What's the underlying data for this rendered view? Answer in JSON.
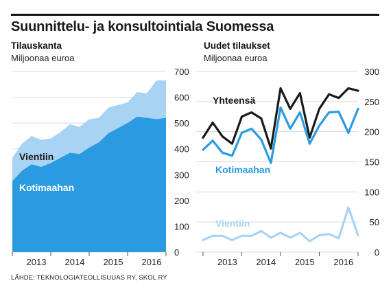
{
  "title": "Suunnittelu- ja konsultointiala Suomessa",
  "source": "LÄHDE: TEKNOLOGIATEOLLISUUAS RY, SKOL RY",
  "colors": {
    "dark_blue": "#2a9be0",
    "light_blue": "#a9d3f3",
    "total_line": "#1a1a1a",
    "grid": "#d9d9d9"
  },
  "chart_data": [
    {
      "type": "area",
      "stacked": true,
      "title": "Tilauskanta",
      "ylabel": "Miljoonaa euroa",
      "ylim": [
        0,
        700
      ],
      "yticks": [
        "0",
        "100",
        "200",
        "300",
        "400",
        "500",
        "600",
        "700"
      ],
      "x_labels": [
        "2013",
        "2014",
        "2015",
        "2016"
      ],
      "x": [
        "2012Q4",
        "2013Q1",
        "2013Q2",
        "2013Q3",
        "2013Q4",
        "2014Q1",
        "2014Q2",
        "2014Q3",
        "2014Q4",
        "2015Q1",
        "2015Q2",
        "2015Q3",
        "2015Q4",
        "2016Q1",
        "2016Q2",
        "2016Q3",
        "2016Q4"
      ],
      "series": [
        {
          "name": "Kotimaahan",
          "values": [
            275,
            315,
            340,
            330,
            345,
            365,
            385,
            380,
            405,
            425,
            460,
            480,
            500,
            525,
            520,
            515,
            520
          ]
        },
        {
          "name": "Vientiin",
          "values": [
            90,
            105,
            110,
            105,
            95,
            100,
            110,
            105,
            110,
            95,
            100,
            90,
            80,
            95,
            95,
            150,
            145
          ]
        }
      ],
      "grid": true
    },
    {
      "type": "line",
      "title": "Uudet tilaukset",
      "ylabel": "Miljoonaa euroa",
      "ylim": [
        0,
        300
      ],
      "yticks": [
        "0",
        "50",
        "100",
        "150",
        "200",
        "250",
        "300"
      ],
      "x_labels": [
        "2013",
        "2014",
        "2015",
        "2016"
      ],
      "x": [
        "2012Q4",
        "2013Q1",
        "2013Q2",
        "2013Q3",
        "2013Q4",
        "2014Q1",
        "2014Q2",
        "2014Q3",
        "2014Q4",
        "2015Q1",
        "2015Q2",
        "2015Q3",
        "2015Q4",
        "2016Q1",
        "2016Q2",
        "2016Q3",
        "2016Q4"
      ],
      "series": [
        {
          "name": "Yhteensä",
          "values": [
            190,
            215,
            192,
            180,
            225,
            232,
            222,
            172,
            272,
            238,
            264,
            190,
            238,
            262,
            256,
            272,
            268
          ]
        },
        {
          "name": "Kotimaahan",
          "values": [
            170,
            185,
            165,
            160,
            198,
            205,
            187,
            148,
            240,
            205,
            232,
            180,
            210,
            232,
            233,
            198,
            238
          ]
        },
        {
          "name": "Vientiin",
          "values": [
            20,
            27,
            27,
            20,
            27,
            27,
            35,
            24,
            32,
            24,
            32,
            18,
            28,
            30,
            23,
            74,
            28
          ]
        }
      ],
      "grid": true
    }
  ]
}
